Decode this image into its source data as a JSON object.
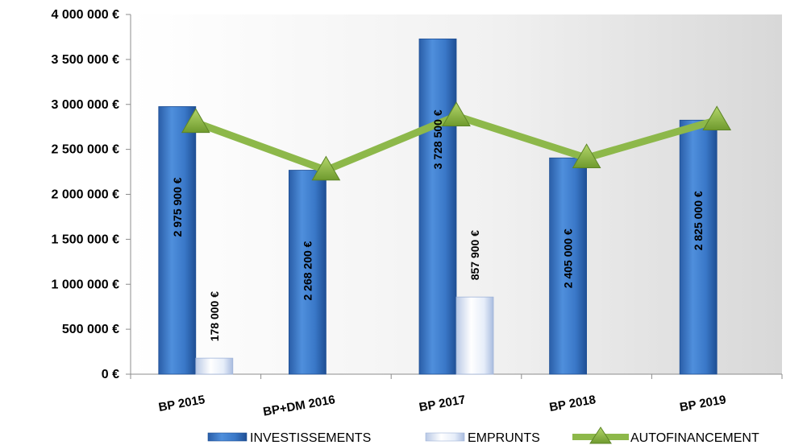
{
  "chart_data": {
    "type": "bar",
    "categories": [
      "BP 2015",
      "BP+DM 2016",
      "BP 2017",
      "BP 2018",
      "BP 2019"
    ],
    "series": [
      {
        "name": "INVESTISSEMENTS",
        "kind": "bar",
        "color": "#3a78c8",
        "values": [
          2975900,
          2268200,
          3728500,
          2405000,
          2825000
        ],
        "labels": [
          "2 975 900 €",
          "2 268 200 €",
          "3 728 500 €",
          "2 405 000 €",
          "2 825 000 €"
        ]
      },
      {
        "name": "EMPRUNTS",
        "kind": "bar",
        "color": "#dce6f7",
        "values": [
          178000,
          0,
          857900,
          0,
          0
        ],
        "labels": [
          "178 000 €",
          "",
          "857 900 €",
          "",
          ""
        ]
      },
      {
        "name": "AUTOFINANCEMENT",
        "kind": "line",
        "color": "#8db84a",
        "values": [
          2797900,
          2268200,
          2870600,
          2405000,
          2825000
        ]
      }
    ],
    "ylim": [
      0,
      4000000
    ],
    "yticks": [
      0,
      500000,
      1000000,
      1500000,
      2000000,
      2500000,
      3000000,
      3500000,
      4000000
    ],
    "ytick_labels": [
      "0 €",
      "500 000 €",
      "1 000 000 €",
      "1 500 000 €",
      "2 000 000 €",
      "2 500 000 €",
      "3 000 000 €",
      "3 500 000 €",
      "4 000 000 €"
    ],
    "title": "",
    "xlabel": "",
    "ylabel": "",
    "grid": false,
    "legend": "bottom"
  }
}
